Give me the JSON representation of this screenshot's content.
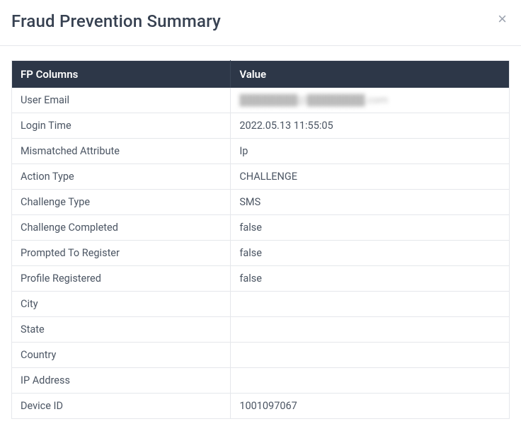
{
  "modal": {
    "title": "Fraud Prevention Summary"
  },
  "table": {
    "headers": {
      "col1": "FP Columns",
      "col2": "Value"
    },
    "rows": [
      {
        "label": "User Email",
        "value": "████████@████████.com",
        "redacted": true
      },
      {
        "label": "Login Time",
        "value": "2022.05.13 11:55:05"
      },
      {
        "label": "Mismatched Attribute",
        "value": "Ip"
      },
      {
        "label": "Action Type",
        "value": "CHALLENGE"
      },
      {
        "label": "Challenge Type",
        "value": "SMS"
      },
      {
        "label": "Challenge Completed",
        "value": "false"
      },
      {
        "label": "Prompted To Register",
        "value": "false"
      },
      {
        "label": "Profile Registered",
        "value": "false"
      },
      {
        "label": "City",
        "value": ""
      },
      {
        "label": "State",
        "value": ""
      },
      {
        "label": "Country",
        "value": ""
      },
      {
        "label": "IP Address",
        "value": ""
      },
      {
        "label": "Device ID",
        "value": "1001097067"
      }
    ]
  },
  "styling": {
    "header_bg": "#2d3748",
    "header_text": "#ffffff",
    "border_color": "#e5e7eb",
    "text_color": "#4b5563",
    "title_color": "#374151"
  }
}
